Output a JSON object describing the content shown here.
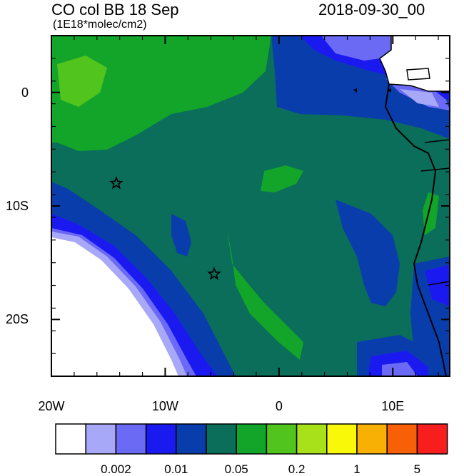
{
  "title_left": "CO col BB 18 Sep",
  "subtitle": "(1E18*molec/cm2)",
  "title_right": "2018-09-30_00",
  "map": {
    "lon_range": [
      -20,
      15
    ],
    "lat_range": [
      -25,
      5
    ],
    "x_ticks": [
      {
        "lon": -20,
        "label": "20W"
      },
      {
        "lon": -10,
        "label": "10W"
      },
      {
        "lon": 0,
        "label": "0"
      },
      {
        "lon": 10,
        "label": "10E"
      }
    ],
    "y_ticks": [
      {
        "lat": 0,
        "label": "0"
      },
      {
        "lat": -10,
        "label": "10S"
      },
      {
        "lat": -20,
        "label": "20S"
      }
    ],
    "stars": [
      {
        "lon": -14.3,
        "lat": -8.0
      },
      {
        "lon": -5.7,
        "lat": -16.0
      }
    ]
  },
  "colorbar": {
    "colors": [
      "#ffffff",
      "#a8a8f8",
      "#6a6af5",
      "#1a1af0",
      "#0a3dac",
      "#0a6e5a",
      "#12a52a",
      "#52c41e",
      "#a8e01a",
      "#f8f808",
      "#f8b005",
      "#f86008",
      "#f81e1e"
    ],
    "labels": [
      {
        "after_box": 2,
        "text": "0.002"
      },
      {
        "after_box": 4,
        "text": "0.01"
      },
      {
        "after_box": 6,
        "text": "0.05"
      },
      {
        "after_box": 8,
        "text": "0.2"
      },
      {
        "after_box": 10,
        "text": "1"
      },
      {
        "after_box": 12,
        "text": "5"
      }
    ]
  }
}
